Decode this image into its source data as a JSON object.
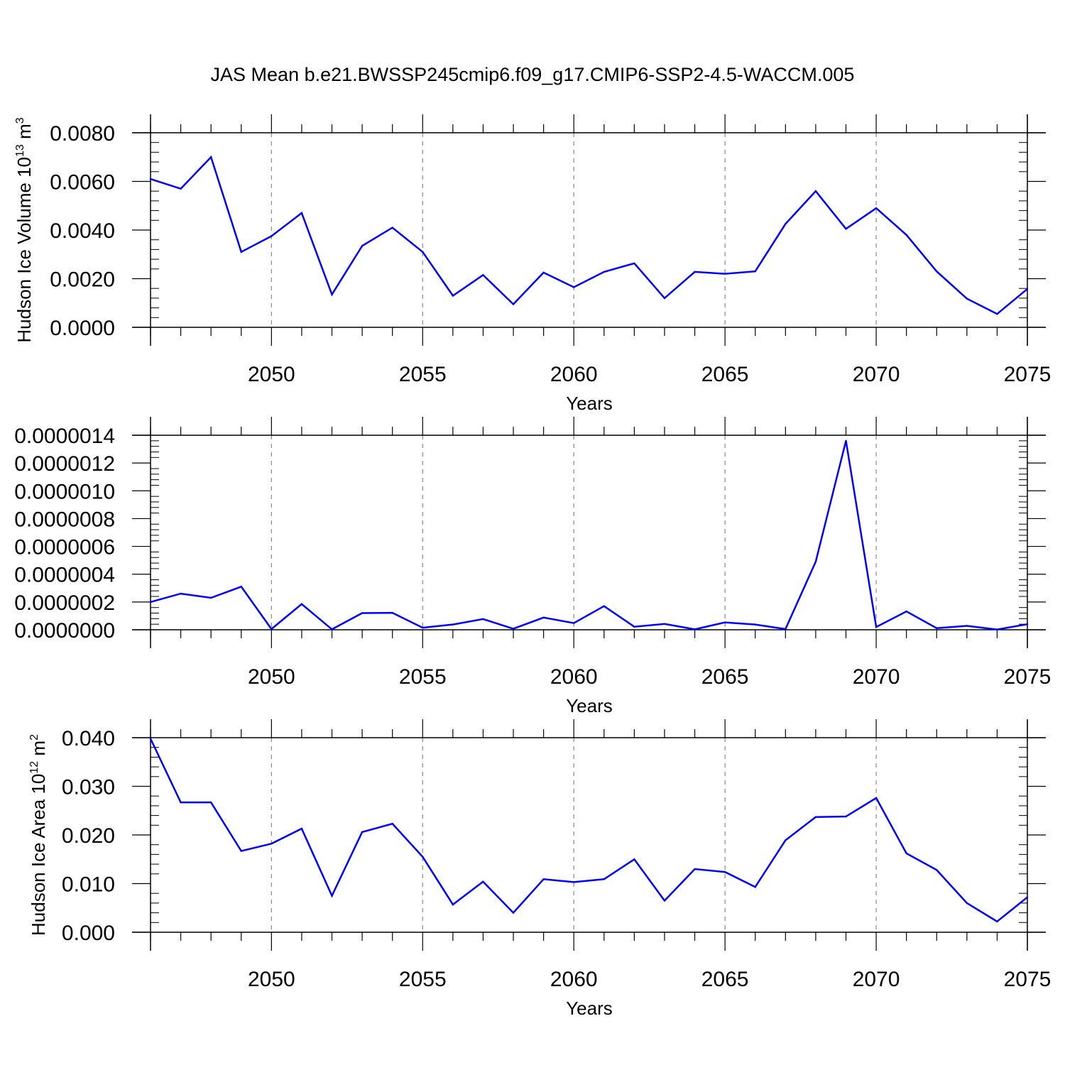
{
  "title": "JAS Mean b.e21.BWSSP245cmip6.f09_g17.CMIP6-SSP2-4.5-WACCM.005",
  "colors": {
    "line": "#0000ff",
    "axis": "#000000",
    "grid": "#888888"
  },
  "chart_data": [
    {
      "type": "line",
      "ylabel": {
        "main": "Hudson Ice Volume 10",
        "exp": "13",
        "unit": " m",
        "unit_exp": "3"
      },
      "xlabel": "Years",
      "xlim": [
        2046,
        2075
      ],
      "ylim": [
        0,
        0.008
      ],
      "ytick_values": [
        0,
        0.002,
        0.004,
        0.006,
        0.008
      ],
      "ytick_labels": [
        "0.0000",
        "0.0020",
        "0.0040",
        "0.0060",
        "0.0080"
      ],
      "xtick_values": [
        2050,
        2055,
        2060,
        2065,
        2070,
        2075
      ],
      "xtick_labels": [
        "2050",
        "2055",
        "2060",
        "2065",
        "2070",
        "2075"
      ],
      "grid": "dashed vertical at major x ticks",
      "x": [
        2046,
        2047,
        2048,
        2049,
        2050,
        2051,
        2052,
        2053,
        2054,
        2055,
        2056,
        2057,
        2058,
        2059,
        2060,
        2061,
        2062,
        2063,
        2064,
        2065,
        2066,
        2067,
        2068,
        2069,
        2070,
        2071,
        2072,
        2073,
        2074,
        2075
      ],
      "values": [
        0.0061,
        0.0057,
        0.007,
        0.0031,
        0.00375,
        0.0047,
        0.00135,
        0.00335,
        0.0041,
        0.0031,
        0.0013,
        0.00215,
        0.00095,
        0.00225,
        0.00165,
        0.00228,
        0.00263,
        0.0012,
        0.00228,
        0.0022,
        0.0023,
        0.00425,
        0.0056,
        0.00405,
        0.0049,
        0.0038,
        0.0023,
        0.00118,
        0.00055,
        0.00158
      ]
    },
    {
      "type": "line",
      "ylabel": null,
      "xlabel": "Years",
      "xlim": [
        2046,
        2075
      ],
      "ylim": [
        0,
        1.4e-06
      ],
      "ytick_values": [
        0,
        2e-07,
        4e-07,
        6e-07,
        8e-07,
        1e-06,
        1.2e-06,
        1.4e-06
      ],
      "ytick_labels": [
        "0.0000000",
        "0.0000002",
        "0.0000004",
        "0.0000006",
        "0.0000008",
        "0.0000010",
        "0.0000012",
        "0.0000014"
      ],
      "xtick_values": [
        2050,
        2055,
        2060,
        2065,
        2070,
        2075
      ],
      "xtick_labels": [
        "2050",
        "2055",
        "2060",
        "2065",
        "2070",
        "2075"
      ],
      "grid": "dashed vertical at major x ticks",
      "x": [
        2046,
        2047,
        2048,
        2049,
        2050,
        2051,
        2052,
        2053,
        2054,
        2055,
        2056,
        2057,
        2058,
        2059,
        2060,
        2061,
        2062,
        2063,
        2064,
        2065,
        2066,
        2067,
        2068,
        2069,
        2070,
        2071,
        2072,
        2073,
        2074,
        2075
      ],
      "values": [
        2e-07,
        2.6e-07,
        2.3e-07,
        3.1e-07,
        5e-09,
        1.85e-07,
        3e-09,
        1.2e-07,
        1.22e-07,
        1.5e-08,
        3.8e-08,
        7.7e-08,
        7e-09,
        8.8e-08,
        4.8e-08,
        1.7e-07,
        2.2e-08,
        4.2e-08,
        3e-09,
        5.3e-08,
        3.8e-08,
        5e-09,
        4.9e-07,
        1.36e-06,
        2e-08,
        1.32e-07,
        1.2e-08,
        2.8e-08,
        2e-09,
        4e-08
      ]
    },
    {
      "type": "line",
      "ylabel": {
        "main": "Hudson Ice Area 10",
        "exp": "12",
        "unit": " m",
        "unit_exp": "2"
      },
      "xlabel": "Years",
      "xlim": [
        2046,
        2075
      ],
      "ylim": [
        0,
        0.04
      ],
      "ytick_values": [
        0,
        0.01,
        0.02,
        0.03,
        0.04
      ],
      "ytick_labels": [
        "0.000",
        "0.010",
        "0.020",
        "0.030",
        "0.040"
      ],
      "xtick_values": [
        2050,
        2055,
        2060,
        2065,
        2070,
        2075
      ],
      "xtick_labels": [
        "2050",
        "2055",
        "2060",
        "2065",
        "2070",
        "2075"
      ],
      "grid": "dashed vertical at major x ticks",
      "x": [
        2046,
        2047,
        2048,
        2049,
        2050,
        2051,
        2052,
        2053,
        2054,
        2055,
        2056,
        2057,
        2058,
        2059,
        2060,
        2061,
        2062,
        2063,
        2064,
        2065,
        2066,
        2067,
        2068,
        2069,
        2070,
        2071,
        2072,
        2073,
        2074,
        2075
      ],
      "values": [
        0.0398,
        0.0267,
        0.0267,
        0.0167,
        0.0182,
        0.0213,
        0.0075,
        0.0206,
        0.0223,
        0.0155,
        0.0057,
        0.0104,
        0.004,
        0.0109,
        0.0103,
        0.0109,
        0.015,
        0.0065,
        0.013,
        0.0124,
        0.0093,
        0.0189,
        0.0237,
        0.0238,
        0.0276,
        0.0162,
        0.0128,
        0.006,
        0.0022,
        0.0072
      ]
    }
  ]
}
